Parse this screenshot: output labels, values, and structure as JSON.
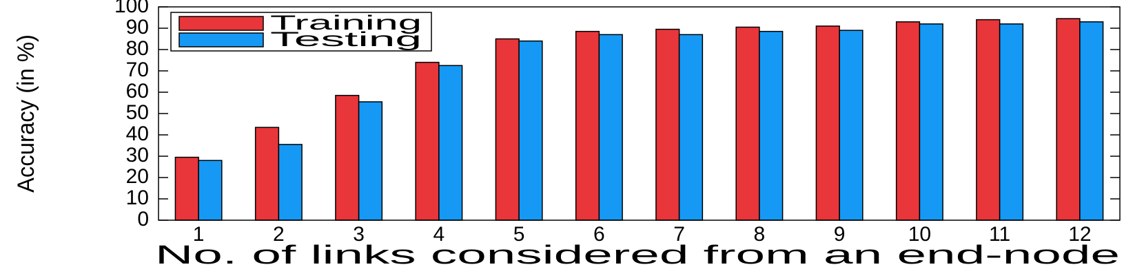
{
  "chart_data": {
    "type": "bar",
    "xlabel": "No. of links considered from an end-node",
    "ylabel": "Accuracy (in %)",
    "categories": [
      "1",
      "2",
      "3",
      "4",
      "5",
      "6",
      "7",
      "8",
      "9",
      "10",
      "11",
      "12"
    ],
    "series": [
      {
        "name": "Training",
        "color": "#e8363a",
        "values": [
          29.5,
          43.5,
          58.5,
          74,
          85,
          88.5,
          89.5,
          90.5,
          91,
          93,
          94,
          94.5
        ]
      },
      {
        "name": "Testing",
        "color": "#1699f5",
        "values": [
          28,
          35.5,
          55.5,
          72.5,
          84,
          87,
          87,
          88.5,
          89,
          92,
          92,
          93
        ]
      }
    ],
    "ylim": [
      0,
      100
    ],
    "yticks": [
      0,
      10,
      20,
      30,
      40,
      50,
      60,
      70,
      80,
      90,
      100
    ],
    "legend": "upper left"
  }
}
